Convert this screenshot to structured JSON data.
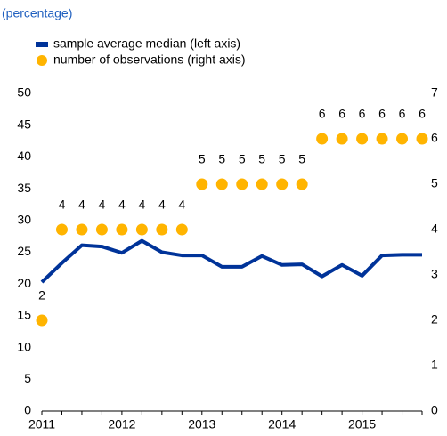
{
  "chart_data": {
    "type": "line",
    "subtitle": "(percentage)",
    "categories": [
      "2011",
      null,
      null,
      null,
      "2012",
      null,
      null,
      null,
      "2013",
      null,
      null,
      null,
      "2014",
      null,
      null,
      null,
      "2015",
      null,
      null,
      null
    ],
    "series": [
      {
        "name": "sample average median (left axis)",
        "color": "#003399",
        "values": [
          20.3,
          23.3,
          26.1,
          25.9,
          24.9,
          26.8,
          25.0,
          24.5,
          24.5,
          22.7,
          22.7,
          24.4,
          23.0,
          23.1,
          21.2,
          23.0,
          21.3,
          24.5,
          24.6,
          24.6
        ]
      },
      {
        "name": "number of observations (right axis)",
        "color": "#ffb400",
        "axis": "y2",
        "values": [
          2,
          4,
          4,
          4,
          4,
          4,
          4,
          4,
          5,
          5,
          5,
          5,
          5,
          5,
          6,
          6,
          6,
          6,
          6,
          6
        ]
      }
    ],
    "ylim": [
      0,
      50
    ],
    "yticks": [
      0,
      5,
      10,
      15,
      20,
      25,
      30,
      35,
      40,
      45,
      50
    ],
    "y2lim": [
      0,
      7
    ],
    "y2ticks": [
      0,
      1,
      2,
      3,
      4,
      5,
      6,
      7
    ]
  }
}
